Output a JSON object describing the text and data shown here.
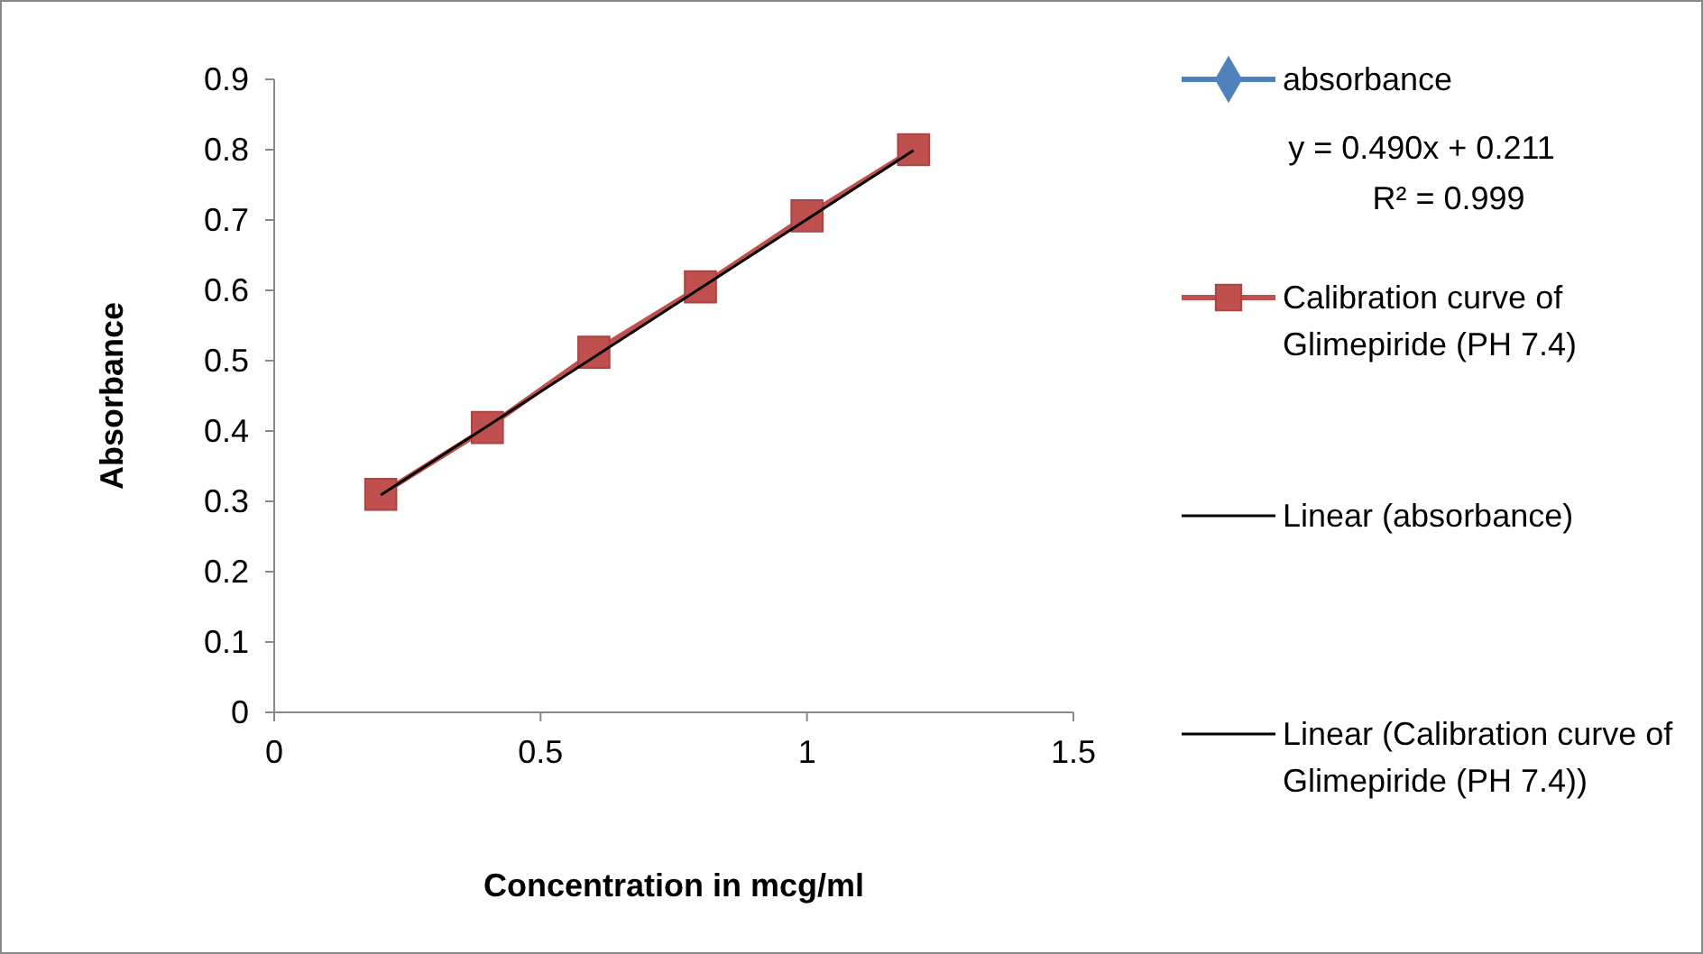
{
  "chart_data": {
    "type": "line",
    "xlabel": "Concentration in mcg/ml",
    "ylabel": "Absorbance",
    "x": [
      0.2,
      0.4,
      0.6,
      0.8,
      1.0,
      1.2
    ],
    "series": [
      {
        "name": "absorbance",
        "color": "#4f81bd",
        "marker": "diamond",
        "values": [
          null,
          null,
          null,
          null,
          null,
          null
        ]
      },
      {
        "name": "Calibration curve of Glimepiride (PH 7.4)",
        "color": "#c0504d",
        "marker": "square",
        "values": [
          0.31,
          0.405,
          0.512,
          0.605,
          0.706,
          0.8
        ]
      },
      {
        "name": "Linear (absorbance)",
        "color": "#000000",
        "marker": "none",
        "x": [
          0.2,
          1.2
        ],
        "values": [
          0.309,
          0.799
        ]
      },
      {
        "name": "Linear (Calibration curve of Glimepiride (PH 7.4))",
        "color": "#000000",
        "marker": "none",
        "values": [
          null,
          null,
          null,
          null,
          null,
          null
        ]
      }
    ],
    "annotations": [
      "y = 0.490x + 0.211",
      "R² = 0.999"
    ],
    "xlim": [
      0,
      1.5
    ],
    "xticks": [
      0,
      0.5,
      1,
      1.5
    ],
    "ylim": [
      0,
      0.9
    ],
    "yticks": [
      0,
      0.1,
      0.2,
      0.3,
      0.4,
      0.5,
      0.6,
      0.7,
      0.8,
      0.9
    ],
    "grid": false,
    "legend": "right"
  }
}
